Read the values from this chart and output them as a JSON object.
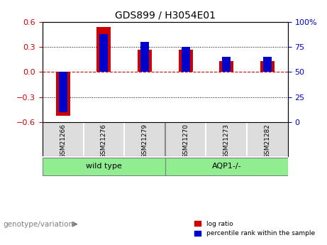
{
  "title": "GDS899 / H3054E01",
  "samples": [
    "GSM21266",
    "GSM21276",
    "GSM21279",
    "GSM21270",
    "GSM21273",
    "GSM21282"
  ],
  "log_ratio": [
    -0.52,
    0.54,
    0.27,
    0.27,
    0.13,
    0.13
  ],
  "percentile_rank": [
    10,
    88,
    80,
    75,
    65,
    65
  ],
  "groups": [
    {
      "label": "wild type",
      "indices": [
        0,
        1,
        2
      ],
      "color": "#90EE90"
    },
    {
      "label": "AQP1-/-",
      "indices": [
        3,
        4,
        5
      ],
      "color": "#90EE90"
    }
  ],
  "group_separator": 2.5,
  "ylim_left": [
    -0.6,
    0.6
  ],
  "ylim_right": [
    0,
    100
  ],
  "yticks_left": [
    -0.6,
    -0.3,
    0,
    0.3,
    0.6
  ],
  "yticks_right": [
    0,
    25,
    50,
    75,
    100
  ],
  "bar_width": 0.35,
  "red_color": "#CC0000",
  "blue_color": "#0000CC",
  "grid_color": "black",
  "zero_line_color": "#CC0000",
  "background_color": "#ffffff",
  "plot_bg_color": "#ffffff",
  "genotype_label": "genotype/variation",
  "legend_log_ratio": "log ratio",
  "legend_percentile": "percentile rank within the sample"
}
